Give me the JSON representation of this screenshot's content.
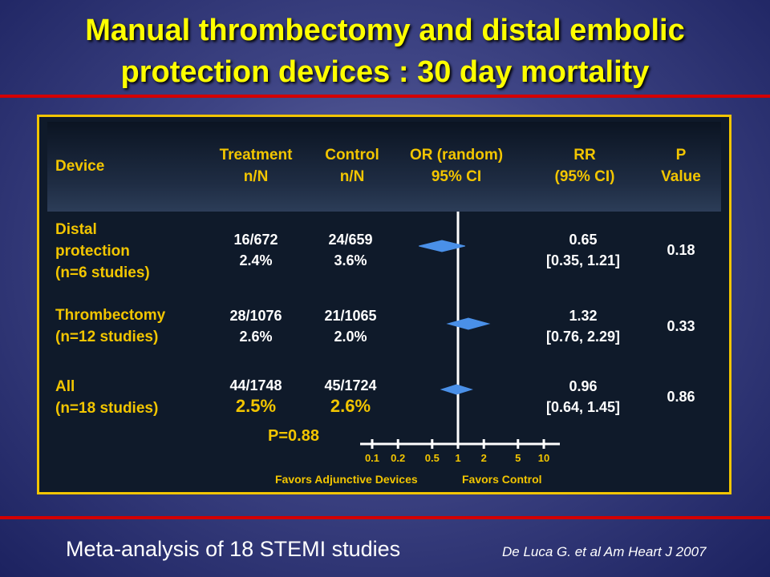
{
  "title": {
    "line1": "Manual thrombectomy and distal embolic",
    "line2": "protection devices : 30 day mortality"
  },
  "table": {
    "headers": {
      "device": "Device",
      "treatment": [
        "Treatment",
        "n/N"
      ],
      "control": [
        "Control",
        "n/N"
      ],
      "or": [
        "OR (random)",
        "95% CI"
      ],
      "rr": [
        "RR",
        "(95% CI)"
      ],
      "p": [
        "P",
        "Value"
      ]
    },
    "rows": [
      {
        "label": [
          "Distal",
          "protection",
          "(n=6 studies)"
        ],
        "treatment": [
          "16/672",
          "2.4%"
        ],
        "control": [
          "24/659",
          "3.6%"
        ],
        "rr": [
          "0.65",
          "[0.35, 1.21]"
        ],
        "p": "0.18"
      },
      {
        "label": [
          "Thrombectomy",
          "(n=12 studies)"
        ],
        "treatment": [
          "28/1076",
          "2.6%"
        ],
        "control": [
          "21/1065",
          "2.0%"
        ],
        "rr": [
          "1.32",
          "[0.76, 2.29]"
        ],
        "p": "0.33"
      },
      {
        "label": [
          "All",
          "(n=18 studies)"
        ],
        "treatment": [
          "44/1748",
          "2.5%"
        ],
        "control": [
          "45/1724",
          "2.6%"
        ],
        "rr": [
          "0.96",
          "[0.64, 1.45]"
        ],
        "p": "0.86"
      }
    ],
    "p_overall": "P=0.88"
  },
  "chart_data": {
    "type": "forest",
    "x_scale": "log",
    "reference_line": 1,
    "tick_labels": [
      "0.1",
      "0.2",
      "0.5",
      "1",
      "2",
      "5",
      "10"
    ],
    "ticks": [
      0.1,
      0.2,
      0.5,
      1,
      2,
      5,
      10
    ],
    "favors_left": "Favors Adjunctive Devices",
    "favors_right": "Favors Control",
    "estimates": [
      {
        "name": "Distal protection",
        "or": 0.65,
        "ci_low": 0.35,
        "ci_high": 1.21
      },
      {
        "name": "Thrombectomy",
        "or": 1.32,
        "ci_low": 0.76,
        "ci_high": 2.29
      },
      {
        "name": "All",
        "or": 0.96,
        "ci_low": 0.64,
        "ci_high": 1.45
      }
    ],
    "marker_color": "#4a90e8"
  },
  "footer": {
    "caption": "Meta-analysis of 18 STEMI studies",
    "citation": "De Luca G. et al Am Heart J 2007"
  }
}
